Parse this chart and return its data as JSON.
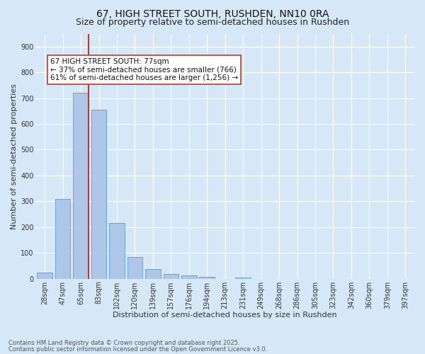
{
  "title1": "67, HIGH STREET SOUTH, RUSHDEN, NN10 0RA",
  "title2": "Size of property relative to semi-detached houses in Rushden",
  "xlabel": "Distribution of semi-detached houses by size in Rushden",
  "ylabel": "Number of semi-detached properties",
  "footnote1": "Contains HM Land Registry data © Crown copyright and database right 2025.",
  "footnote2": "Contains public sector information licensed under the Open Government Licence v3.0.",
  "bar_labels": [
    "28sqm",
    "47sqm",
    "65sqm",
    "83sqm",
    "102sqm",
    "120sqm",
    "139sqm",
    "157sqm",
    "176sqm",
    "194sqm",
    "213sqm",
    "231sqm",
    "249sqm",
    "268sqm",
    "286sqm",
    "305sqm",
    "323sqm",
    "342sqm",
    "360sqm",
    "379sqm",
    "397sqm"
  ],
  "bar_values": [
    25,
    310,
    720,
    655,
    215,
    85,
    37,
    17,
    13,
    8,
    0,
    5,
    0,
    0,
    0,
    0,
    0,
    0,
    0,
    0,
    0
  ],
  "bar_color": "#aec6e8",
  "bar_edge_color": "#5b9bd5",
  "vline_color": "#c0392b",
  "annotation_text": "67 HIGH STREET SOUTH: 77sqm\n← 37% of semi-detached houses are smaller (766)\n61% of semi-detached houses are larger (1,256) →",
  "annotation_box_color": "#ffffff",
  "annotation_box_edge": "#c0392b",
  "ylim": [
    0,
    950
  ],
  "yticks": [
    0,
    100,
    200,
    300,
    400,
    500,
    600,
    700,
    800,
    900
  ],
  "bg_color": "#d6e8f7",
  "plot_bg_color": "#d6e8f7",
  "grid_color": "#ffffff",
  "title_fontsize": 10,
  "subtitle_fontsize": 9,
  "axis_label_fontsize": 8,
  "tick_fontsize": 7,
  "annotation_fontsize": 7.5,
  "footnote_fontsize": 6
}
